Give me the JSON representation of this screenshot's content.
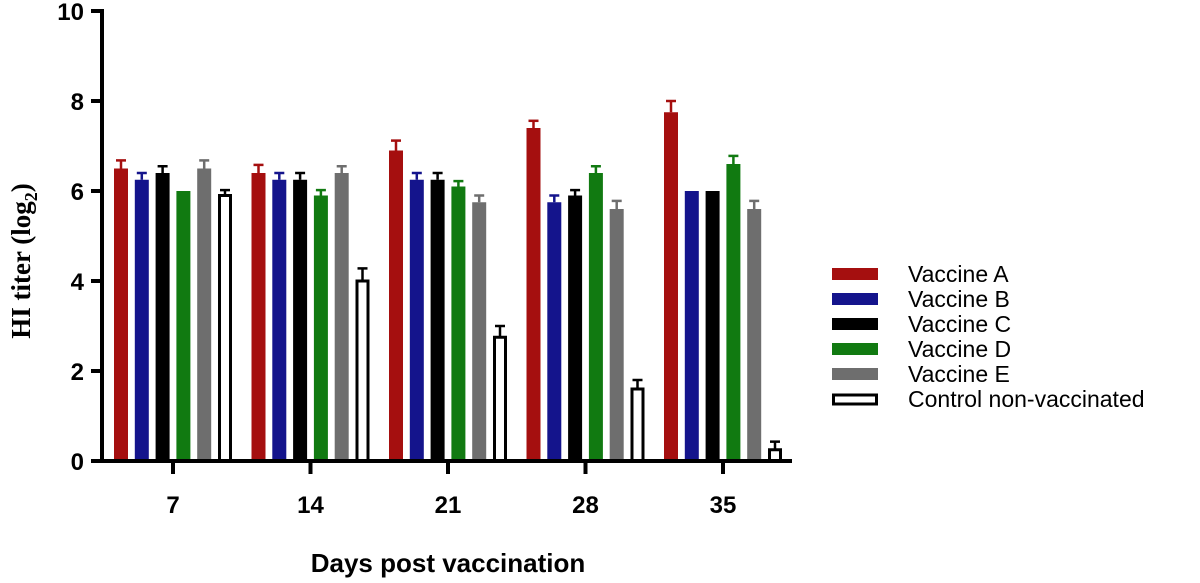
{
  "chart_data": {
    "type": "bar",
    "title": "",
    "xlabel": "Days post vaccination",
    "ylabel": "HI titer (log",
    "ylabel_sub": "2",
    "ylabel_close": ")",
    "ylim": [
      0,
      10
    ],
    "yticks": [
      "0",
      "2",
      "4",
      "6",
      "8",
      "10"
    ],
    "categories": [
      "7",
      "14",
      "21",
      "28",
      "35"
    ],
    "legend_position": "right",
    "series": [
      {
        "name": "Vaccine A",
        "color": "#a50f0f",
        "style": "solid",
        "values": [
          6.5,
          6.4,
          6.9,
          7.4,
          7.75
        ],
        "errors": [
          0.18,
          0.18,
          0.22,
          0.16,
          0.25
        ]
      },
      {
        "name": "Vaccine B",
        "color": "#14148c",
        "style": "solid",
        "values": [
          6.25,
          6.25,
          6.25,
          5.75,
          6.0
        ],
        "errors": [
          0.15,
          0.15,
          0.15,
          0.15,
          0.0
        ]
      },
      {
        "name": "Vaccine C",
        "color": "#000000",
        "style": "solid",
        "values": [
          6.4,
          6.25,
          6.25,
          5.9,
          6.0
        ],
        "errors": [
          0.15,
          0.15,
          0.15,
          0.12,
          0.0
        ]
      },
      {
        "name": "Vaccine D",
        "color": "#117a11",
        "style": "solid",
        "values": [
          6.0,
          5.9,
          6.1,
          6.4,
          6.6
        ],
        "errors": [
          0.0,
          0.12,
          0.12,
          0.15,
          0.18
        ]
      },
      {
        "name": "Vaccine E",
        "color": "#6e6e6e",
        "style": "solid",
        "values": [
          6.5,
          6.4,
          5.75,
          5.6,
          5.6
        ],
        "errors": [
          0.18,
          0.15,
          0.15,
          0.18,
          0.18
        ]
      },
      {
        "name": "Control non-vaccinated",
        "color": "#000000",
        "style": "hollow",
        "values": [
          5.9,
          4.0,
          2.75,
          1.6,
          0.25
        ],
        "errors": [
          0.12,
          0.28,
          0.25,
          0.2,
          0.18
        ]
      }
    ]
  }
}
